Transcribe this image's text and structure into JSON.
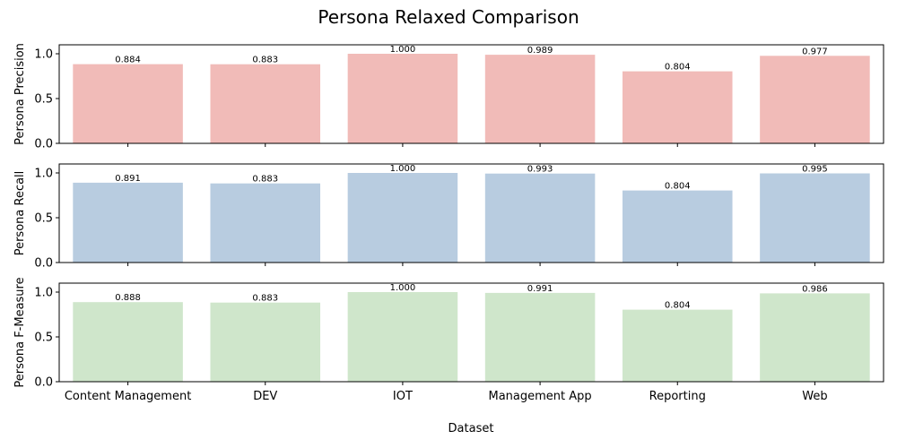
{
  "chart_data": {
    "type": "bar",
    "title": "Persona Relaxed Comparison",
    "xlabel": "Dataset",
    "categories": [
      "Content Management",
      "DEV",
      "IOT",
      "Management App",
      "Reporting",
      "Web"
    ],
    "ylim": [
      0,
      1.1
    ],
    "yticks": [
      "0.0",
      "0.5",
      "1.0"
    ],
    "panels": [
      {
        "ylabel": "Persona Precision",
        "color": "#f1bbb8",
        "values": [
          0.884,
          0.883,
          1.0,
          0.989,
          0.804,
          0.977
        ],
        "labels": [
          "0.884",
          "0.883",
          "1.000",
          "0.989",
          "0.804",
          "0.977"
        ]
      },
      {
        "ylabel": "Persona Recall",
        "color": "#b8cce0",
        "values": [
          0.891,
          0.883,
          1.0,
          0.993,
          0.804,
          0.995
        ],
        "labels": [
          "0.891",
          "0.883",
          "1.000",
          "0.993",
          "0.804",
          "0.995"
        ]
      },
      {
        "ylabel": "Persona F-Measure",
        "color": "#cfe6cb",
        "values": [
          0.888,
          0.883,
          1.0,
          0.991,
          0.804,
          0.986
        ],
        "labels": [
          "0.888",
          "0.883",
          "1.000",
          "0.991",
          "0.804",
          "0.986"
        ]
      }
    ]
  }
}
